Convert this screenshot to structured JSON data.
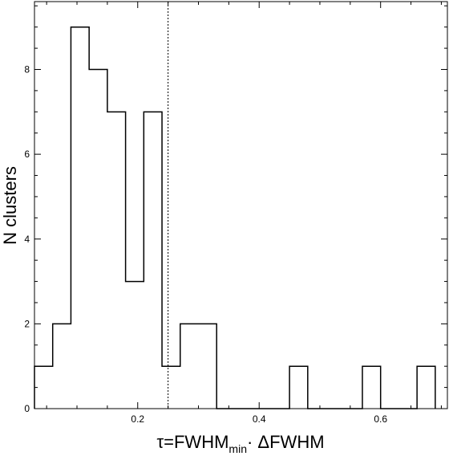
{
  "chart_data": {
    "type": "histogram",
    "title": "",
    "xlabel_main": "τ=FWHM",
    "xlabel_sub": "min",
    "xlabel_tail": "· ΔFWHM",
    "ylabel": "N clusters",
    "xlim": [
      0.03,
      0.71
    ],
    "ylim": [
      0,
      9.6
    ],
    "xticks": [
      {
        "value": 0.2,
        "label": "0.2"
      },
      {
        "value": 0.4,
        "label": "0.4"
      },
      {
        "value": 0.6,
        "label": "0.6"
      }
    ],
    "yticks": [
      {
        "value": 0,
        "label": "0"
      },
      {
        "value": 2,
        "label": "2"
      },
      {
        "value": 4,
        "label": "4"
      },
      {
        "value": 6,
        "label": "6"
      },
      {
        "value": 8,
        "label": "8"
      }
    ],
    "bin_edges": [
      0.03,
      0.06,
      0.09,
      0.12,
      0.15,
      0.18,
      0.21,
      0.24,
      0.27,
      0.3,
      0.33,
      0.36,
      0.39,
      0.42,
      0.45,
      0.48,
      0.51,
      0.54,
      0.57,
      0.6,
      0.63,
      0.66,
      0.69
    ],
    "counts": [
      1,
      2,
      9,
      8,
      7,
      3,
      7,
      1,
      2,
      2,
      0,
      0,
      0,
      0,
      1,
      0,
      0,
      0,
      1,
      0,
      0,
      1
    ],
    "vline": {
      "x": 0.25,
      "style": "dotted"
    },
    "grid": false,
    "legend": "none"
  }
}
